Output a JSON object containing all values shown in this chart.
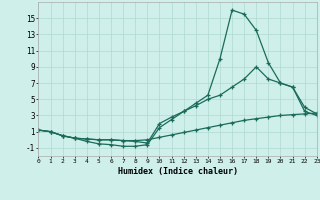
{
  "xlabel": "Humidex (Indice chaleur)",
  "background_color": "#cff0ea",
  "grid_color": "#b0d8d2",
  "line_color": "#1a6b5a",
  "x": [
    0,
    1,
    2,
    3,
    4,
    5,
    6,
    7,
    8,
    9,
    10,
    11,
    12,
    13,
    14,
    15,
    16,
    17,
    18,
    19,
    20,
    21,
    22,
    23
  ],
  "line1": [
    1.2,
    1.0,
    0.5,
    0.2,
    0.1,
    0.0,
    0.0,
    -0.1,
    -0.1,
    0.0,
    0.3,
    0.6,
    0.9,
    1.2,
    1.5,
    1.8,
    2.1,
    2.4,
    2.6,
    2.8,
    3.0,
    3.1,
    3.2,
    3.3
  ],
  "line2": [
    1.2,
    1.0,
    0.5,
    0.2,
    -0.2,
    -0.5,
    -0.6,
    -0.8,
    -0.8,
    -0.6,
    1.5,
    2.5,
    3.5,
    4.5,
    5.5,
    10.0,
    16.0,
    15.5,
    13.5,
    9.5,
    7.0,
    6.5,
    4.0,
    3.2
  ],
  "line3": [
    1.2,
    1.0,
    0.5,
    0.2,
    0.1,
    0.0,
    0.0,
    -0.1,
    -0.2,
    -0.4,
    2.0,
    2.8,
    3.5,
    4.2,
    5.0,
    5.5,
    6.5,
    7.5,
    9.0,
    7.5,
    7.0,
    6.5,
    3.5,
    3.0
  ],
  "ylim": [
    -2,
    17
  ],
  "xlim": [
    0,
    23
  ],
  "yticks": [
    -1,
    1,
    3,
    5,
    7,
    9,
    11,
    13,
    15
  ],
  "xticks": [
    0,
    1,
    2,
    3,
    4,
    5,
    6,
    7,
    8,
    9,
    10,
    11,
    12,
    13,
    14,
    15,
    16,
    17,
    18,
    19,
    20,
    21,
    22,
    23
  ],
  "linewidth": 0.9,
  "markersize": 3.5,
  "marker_ew": 0.9
}
